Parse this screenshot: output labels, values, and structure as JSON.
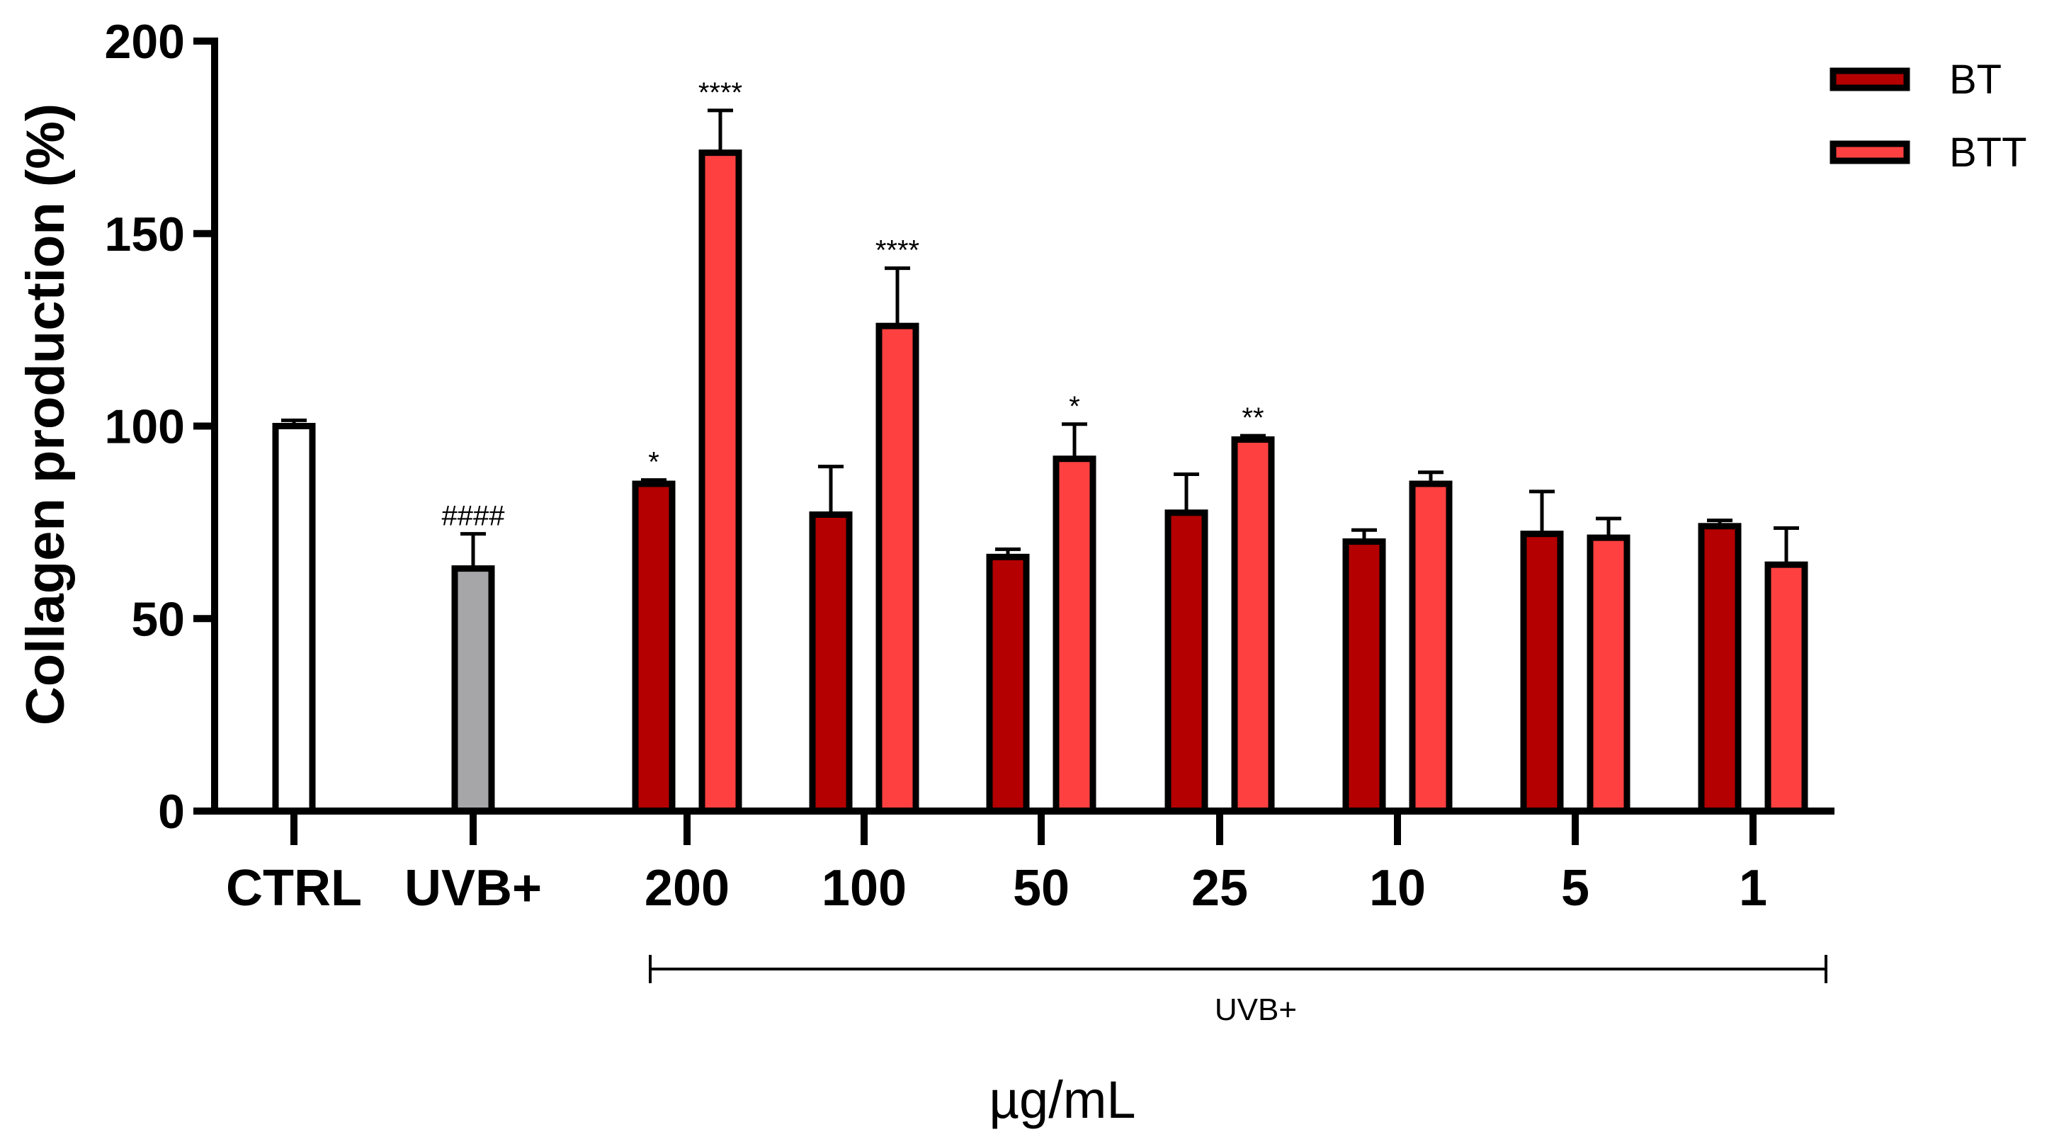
{
  "chart_data": {
    "type": "bar",
    "ylabel": "Collagen production (%)",
    "xlabel": "µg/mL",
    "ylim": [
      0,
      200
    ],
    "yticks": [
      "0",
      "50",
      "100",
      "150",
      "200"
    ],
    "colors": {
      "CTRL": "#ffffff",
      "UVB+": "#a6a6a9",
      "BT": "#b40000",
      "BTT": "#ff4040",
      "outline": "#000000"
    },
    "controls": [
      {
        "category": "CTRL",
        "value": 100,
        "error": 1.5,
        "sig": ""
      },
      {
        "category": "UVB+",
        "value": 63,
        "error": 9,
        "sig": "####"
      }
    ],
    "categories": [
      "200",
      "100",
      "50",
      "25",
      "10",
      "5",
      "1"
    ],
    "series": [
      {
        "name": "BT",
        "values": [
          85,
          77,
          66,
          77.5,
          70,
          72,
          74
        ],
        "errors": [
          1,
          12.5,
          2,
          10,
          3,
          11,
          1.5
        ],
        "sig": [
          "*",
          "",
          "",
          "",
          "",
          "",
          ""
        ]
      },
      {
        "name": "BTT",
        "values": [
          171,
          126,
          91.5,
          96.5,
          85,
          71,
          64
        ],
        "errors": [
          11,
          15,
          9,
          1,
          3,
          5,
          9.5
        ],
        "sig": [
          "****",
          "****",
          "*",
          "**",
          "",
          "",
          ""
        ]
      }
    ],
    "bracket_label": "UVB+",
    "legend": [
      "BT",
      "BTT"
    ],
    "legend_position": "top-right"
  }
}
